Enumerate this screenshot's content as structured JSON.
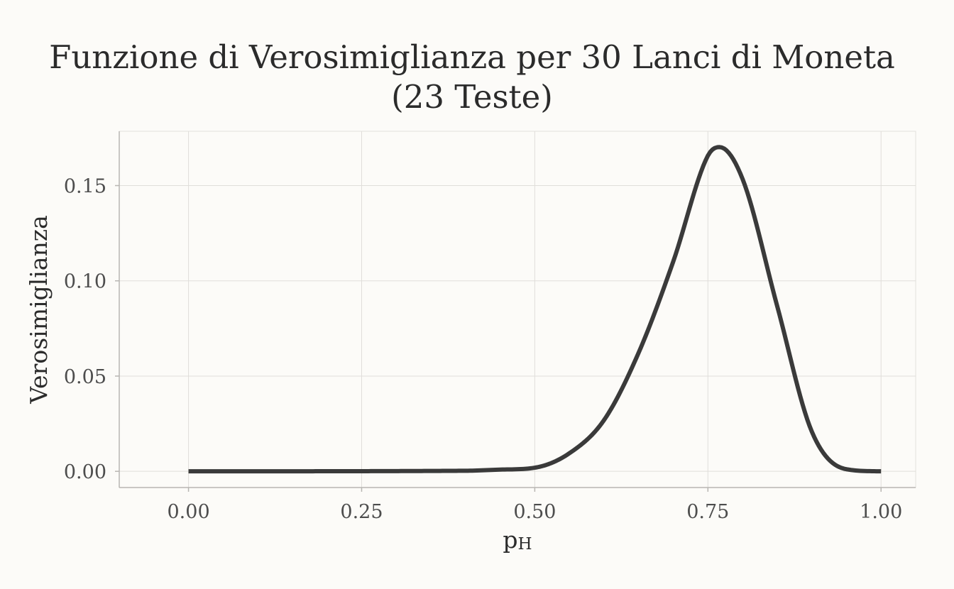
{
  "chart_data": {
    "type": "line",
    "title_line1": "Funzione di Verosimiglianza per 30 Lanci di Moneta",
    "title_line2": "(23 Teste)",
    "xlabel_main": "p",
    "xlabel_sub": "H",
    "ylabel": "Verosimiglianza",
    "xlim": [
      -0.1,
      1.05
    ],
    "ylim": [
      -0.0085,
      0.1785
    ],
    "x_ticks": [
      0.0,
      0.25,
      0.5,
      0.75,
      1.0
    ],
    "x_tick_labels": [
      "0.00",
      "0.25",
      "0.50",
      "0.75",
      "1.00"
    ],
    "y_ticks": [
      0.0,
      0.05,
      0.1,
      0.15
    ],
    "y_tick_labels": [
      "0.00",
      "0.05",
      "0.10",
      "0.15"
    ],
    "grid": true,
    "series": [
      {
        "line_color": "#3a3a3a",
        "x": [
          0.0,
          0.4,
          0.45,
          0.5,
          0.55,
          0.6,
          0.65,
          0.7,
          0.75,
          0.7667,
          0.8,
          0.85,
          0.9,
          0.95,
          1.0
        ],
        "y": [
          0.0,
          0.0003,
          0.0009,
          0.0019,
          0.0095,
          0.0269,
          0.0623,
          0.1102,
          0.1657,
          0.1702,
          0.1535,
          0.0868,
          0.0209,
          0.0011,
          0.0
        ]
      }
    ]
  }
}
